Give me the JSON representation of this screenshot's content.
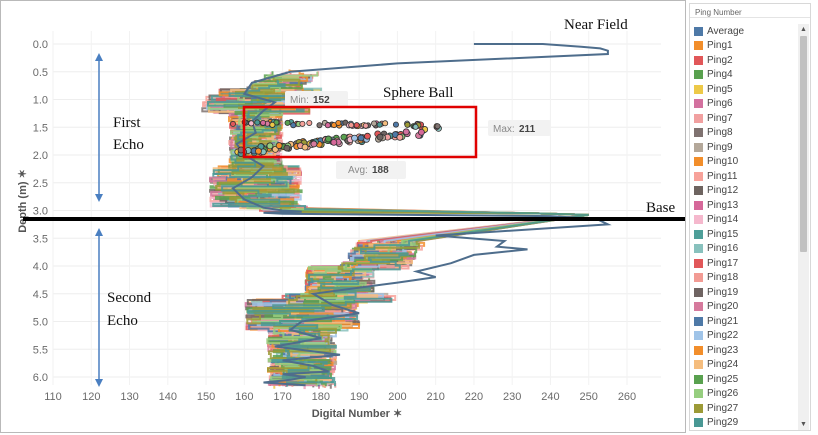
{
  "chart_data": {
    "type": "line",
    "xlabel": "Digital Number",
    "ylabel": "Depth (m)",
    "xlim": [
      107,
      265
    ],
    "ylim": [
      0,
      6.2
    ],
    "y_inverted": true,
    "x_ticks": [
      "110",
      "120",
      "130",
      "140",
      "150",
      "160",
      "170",
      "180",
      "190",
      "200",
      "210",
      "220",
      "230",
      "240",
      "250",
      "260"
    ],
    "y_ticks": [
      "0.0",
      "0.5",
      "1.0",
      "1.5",
      "2.0",
      "2.5",
      "3.0",
      "3.5",
      "4.0",
      "4.5",
      "5.0",
      "5.5",
      "6.0"
    ],
    "grid": true,
    "legend_position": "right",
    "average_profile": {
      "x": [
        220,
        238,
        248,
        253,
        255,
        255,
        200,
        172,
        162,
        160,
        168,
        165,
        162,
        163,
        158,
        160,
        165,
        162,
        157,
        160,
        165,
        170,
        175,
        168,
        165,
        170,
        240,
        252,
        255,
        210,
        228,
        226,
        234,
        220,
        214,
        205,
        210,
        200,
        178,
        183,
        190,
        175,
        172,
        180,
        168,
        185,
        170,
        178,
        182,
        170,
        176,
        172,
        165,
        176
      ],
      "y": [
        0.0,
        0.0,
        0.05,
        0.08,
        0.12,
        0.18,
        0.35,
        0.5,
        0.7,
        0.9,
        1.05,
        1.2,
        1.4,
        1.6,
        1.8,
        2.0,
        2.2,
        2.4,
        2.6,
        2.8,
        2.95,
        3.0,
        3.02,
        3.03,
        3.04,
        3.06,
        3.1,
        3.15,
        3.25,
        3.45,
        3.55,
        3.65,
        3.7,
        3.8,
        3.95,
        4.1,
        4.2,
        4.3,
        4.5,
        4.7,
        4.85,
        5.0,
        5.15,
        5.3,
        5.45,
        5.6,
        5.7,
        5.8,
        5.9,
        5.95,
        6.0,
        6.05,
        6.1,
        6.15
      ]
    },
    "annotations": {
      "near_field": "Near Field",
      "sphere_ball": "Sphere Ball",
      "base": "Base",
      "first_echo": [
        "First",
        "Echo"
      ],
      "second_echo": [
        "Second",
        "Echo"
      ]
    },
    "tooltips": {
      "min_label": "Min:",
      "min_value": "152",
      "max_label": "Max:",
      "max_value": "211",
      "avg_label": "Avg:",
      "avg_value": "188"
    },
    "series": [
      {
        "name": "Average",
        "color": "#4e79a7"
      },
      {
        "name": "Ping1",
        "color": "#f28e2b"
      },
      {
        "name": "Ping2",
        "color": "#e15759"
      },
      {
        "name": "Ping4",
        "color": "#59a14f"
      },
      {
        "name": "Ping5",
        "color": "#edc948"
      },
      {
        "name": "Ping6",
        "color": "#d3719f"
      },
      {
        "name": "Ping7",
        "color": "#f1a0a0"
      },
      {
        "name": "Ping8",
        "color": "#7f7270"
      },
      {
        "name": "Ping9",
        "color": "#b4a89a"
      },
      {
        "name": "Ping10",
        "color": "#f28e2b"
      },
      {
        "name": "Ping11",
        "color": "#f7a29a"
      },
      {
        "name": "Ping12",
        "color": "#6e6460"
      },
      {
        "name": "Ping13",
        "color": "#d6689a"
      },
      {
        "name": "Ping14",
        "color": "#f5b8cd"
      },
      {
        "name": "Ping15",
        "color": "#4e9f99"
      },
      {
        "name": "Ping16",
        "color": "#88c1bd"
      },
      {
        "name": "Ping17",
        "color": "#e15759"
      },
      {
        "name": "Ping18",
        "color": "#f29b94"
      },
      {
        "name": "Ping19",
        "color": "#6f6462"
      },
      {
        "name": "Ping20",
        "color": "#d67a9d"
      },
      {
        "name": "Ping21",
        "color": "#4e79a7"
      },
      {
        "name": "Ping22",
        "color": "#a0c4e8"
      },
      {
        "name": "Ping23",
        "color": "#f28e2b"
      },
      {
        "name": "Ping24",
        "color": "#f5bd7e"
      },
      {
        "name": "Ping25",
        "color": "#59a14f"
      },
      {
        "name": "Ping26",
        "color": "#96ce7f"
      },
      {
        "name": "Ping27",
        "color": "#9c9a36"
      },
      {
        "name": "Ping29",
        "color": "#499894"
      }
    ]
  },
  "legend": {
    "title": "Ping Number",
    "scroll_up": "▲",
    "scroll_down": "▼"
  }
}
